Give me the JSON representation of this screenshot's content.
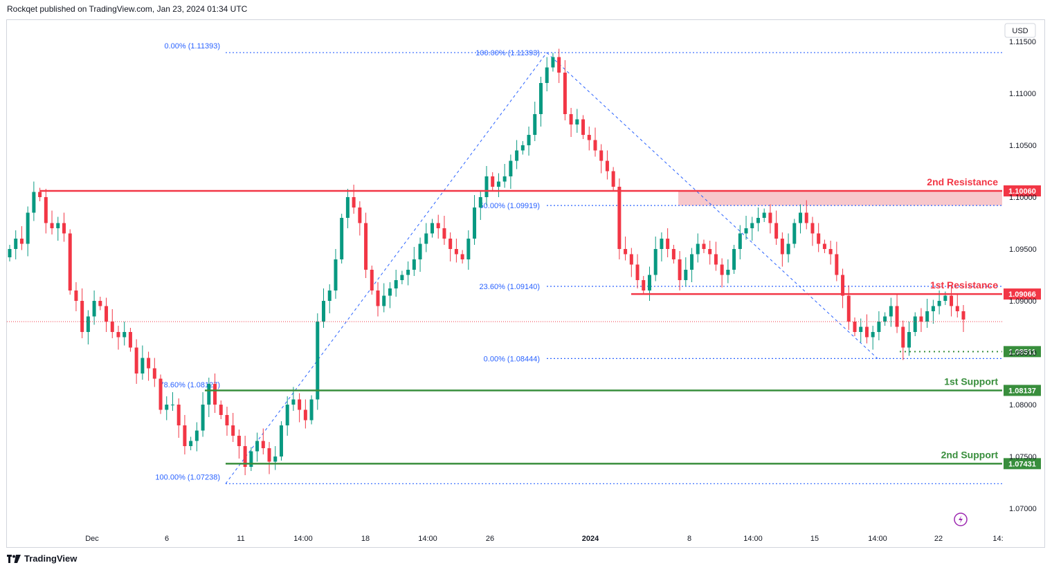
{
  "header": {
    "publisher": "Rockqet published on TradingView.com, Jan 23, 2024 01:34 UTC"
  },
  "currency": "USD",
  "footer": {
    "brand": "TradingView"
  },
  "colors": {
    "up": "#089981",
    "down": "#f23645",
    "fib": "#2962ff",
    "resistance": "#f23645",
    "support": "#388e3c",
    "zone": "#f7c7cb"
  },
  "chart_data": {
    "type": "candlestick",
    "title": "",
    "ylim": [
      1.068,
      1.117
    ],
    "y_ticks": [
      "1.11500",
      "1.11000",
      "1.10500",
      "1.10000",
      "1.09500",
      "1.09000",
      "1.08500",
      "1.08000",
      "1.07500",
      "1.07000"
    ],
    "x_ticks": [
      "Dec",
      "6",
      "11",
      "14:00",
      "18",
      "14:00",
      "26",
      "2024",
      "8",
      "14:00",
      "15",
      "14:00",
      "22",
      "14:"
    ],
    "last_price": 1.088,
    "levels": [
      {
        "name": "2nd Resistance",
        "value": 1.1006,
        "label": "1.10060",
        "kind": "resistance"
      },
      {
        "name": "1st Resistance",
        "value": 1.09066,
        "label": "1.09066",
        "kind": "resistance"
      },
      {
        "name": "1st Support",
        "value": 1.08137,
        "label": "1.08137",
        "kind": "support"
      },
      {
        "name": "2nd Support",
        "value": 1.07431,
        "label": "1.07431",
        "kind": "support"
      },
      {
        "name": "",
        "value": 1.08511,
        "label": "1.08511",
        "kind": "support-dotted"
      }
    ],
    "resistance_zone": [
      1.09919,
      1.1006
    ],
    "fib_up": [
      {
        "label": "0.00% (1.11393)",
        "value": 1.11393
      },
      {
        "label": "78.60% (1.08127)",
        "value": 1.08127
      },
      {
        "label": "100.00% (1.07238)",
        "value": 1.07238
      }
    ],
    "fib_down": [
      {
        "label": "100.00% (1.11393)",
        "value": 1.11393
      },
      {
        "label": "50.00% (1.09919)",
        "value": 1.09919
      },
      {
        "label": "23.60% (1.09140)",
        "value": 1.0914
      },
      {
        "label": "0.00% (1.08444)",
        "value": 1.08444
      }
    ],
    "closes": [
      1.095,
      1.096,
      1.0955,
      1.0985,
      1.1005,
      1.1,
      1.0975,
      1.097,
      1.0975,
      1.0965,
      1.091,
      1.09,
      1.087,
      1.0885,
      1.09,
      1.0895,
      1.088,
      1.087,
      1.0865,
      1.087,
      1.0855,
      1.083,
      1.0845,
      1.0835,
      1.0825,
      1.0795,
      1.08,
      1.08,
      1.078,
      1.076,
      1.0765,
      1.0775,
      1.08,
      1.082,
      1.08,
      1.079,
      1.078,
      1.077,
      1.076,
      1.074,
      1.0755,
      1.0765,
      1.0758,
      1.0745,
      1.075,
      1.078,
      1.08,
      1.0805,
      1.0795,
      1.0785,
      1.0805,
      1.088,
      1.09,
      1.091,
      1.094,
      1.098,
      1.1,
      1.099,
      1.0975,
      1.093,
      1.091,
      1.0895,
      1.0905,
      1.0912,
      1.092,
      1.0925,
      1.093,
      1.094,
      1.0955,
      1.0965,
      1.0975,
      1.097,
      1.096,
      1.095,
      1.0945,
      1.094,
      1.096,
      1.099,
      1.1,
      1.102,
      1.101,
      1.1015,
      1.102,
      1.1035,
      1.1045,
      1.105,
      1.106,
      1.108,
      1.111,
      1.1125,
      1.1135,
      1.112,
      1.108,
      1.107,
      1.1075,
      1.106,
      1.1055,
      1.1045,
      1.1035,
      1.1025,
      1.101,
      1.095,
      1.0945,
      1.0935,
      1.092,
      1.091,
      1.0925,
      1.095,
      1.096,
      1.095,
      1.094,
      1.092,
      1.093,
      1.0945,
      1.0955,
      1.095,
      1.0945,
      1.0935,
      1.0925,
      1.093,
      1.095,
      1.0965,
      1.097,
      1.0975,
      1.098,
      1.0985,
      1.0975,
      1.096,
      1.0945,
      1.0955,
      1.0975,
      1.0985,
      1.0975,
      1.0965,
      1.0955,
      1.095,
      1.0945,
      1.0925,
      1.0905,
      1.088,
      1.087,
      1.0875,
      1.0865,
      1.087,
      1.088,
      1.0885,
      1.0895,
      1.0875,
      1.0855,
      1.087,
      1.0885,
      1.088,
      1.089,
      1.0895,
      1.09,
      1.0905,
      1.0895,
      1.089,
      1.0882
    ]
  }
}
